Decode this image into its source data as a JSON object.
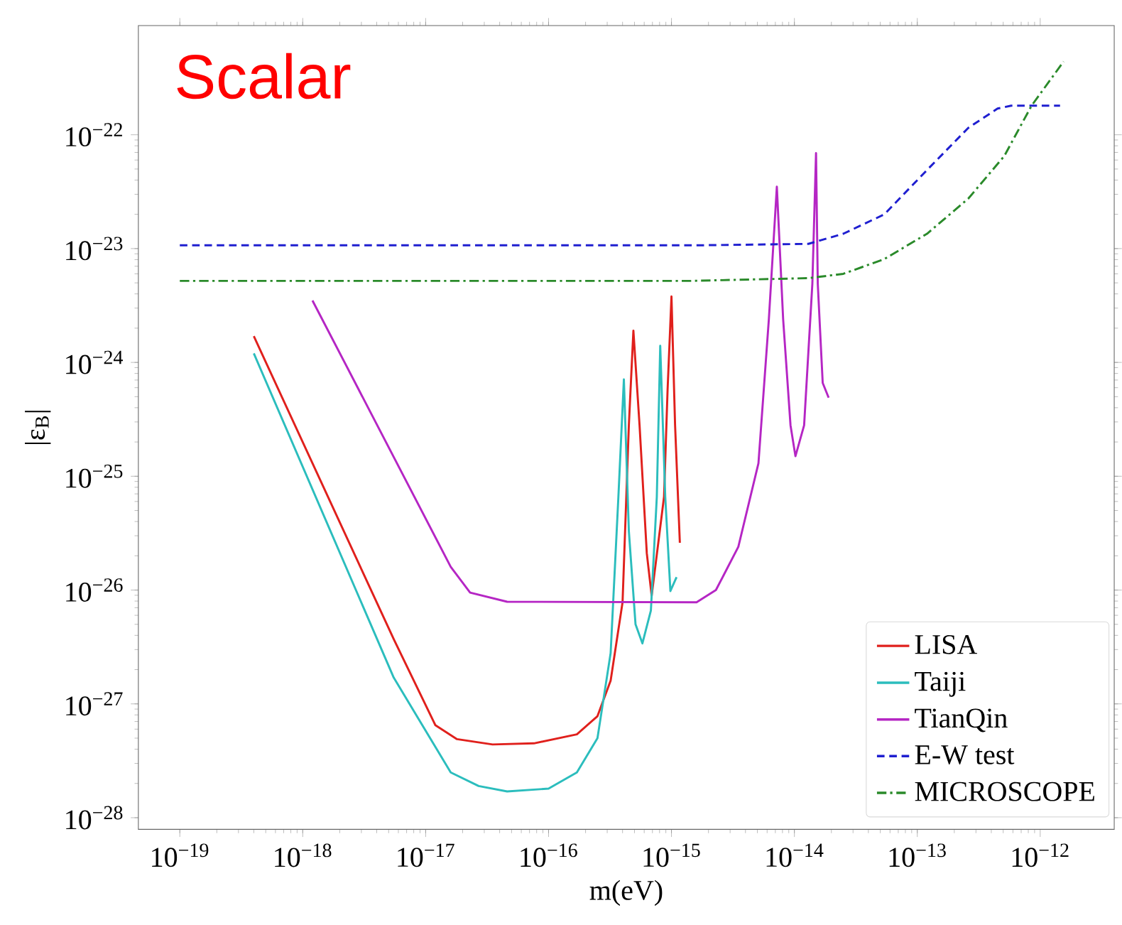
{
  "chart_data": {
    "type": "line",
    "title": "Scalar",
    "xlabel": "m(eV)",
    "ylabel": "|ε$_{B}$|",
    "log": "xy",
    "grid": false,
    "legend": "bottom right",
    "xlim": [
      4.6e-20,
      4e-12
    ],
    "ylim": [
      7.9e-29,
      9.1e-22
    ],
    "xticks": [
      {
        "value": 1e-19,
        "label": "10$^{−19}$"
      },
      {
        "value": 1e-18,
        "label": "10$^{−18}$"
      },
      {
        "value": 1e-17,
        "label": "10$^{−17}$"
      },
      {
        "value": 1e-16,
        "label": "10$^{−16}$"
      },
      {
        "value": 1e-15,
        "label": "10$^{−15}$"
      },
      {
        "value": 1e-14,
        "label": "10$^{−14}$"
      },
      {
        "value": 1e-13,
        "label": "10$^{−13}$"
      },
      {
        "value": 1e-12,
        "label": "10$^{−12}$"
      }
    ],
    "yticks": [
      {
        "value": 1e-28,
        "label": "10$^{−28}$"
      },
      {
        "value": 1e-27,
        "label": "10$^{−27}$"
      },
      {
        "value": 1e-26,
        "label": "10$^{−26}$"
      },
      {
        "value": 1e-25,
        "label": "10$^{−25}$"
      },
      {
        "value": 1e-24,
        "label": "10$^{−24}$"
      },
      {
        "value": 1e-23,
        "label": "10$^{−23}$"
      },
      {
        "value": 1e-22,
        "label": "10$^{−22}$"
      }
    ],
    "series": [
      {
        "name": "LISA",
        "color": "#e0201c",
        "line_style": "solid",
        "x": [
          4e-19,
          5.5e-18,
          1.2e-17,
          1.8e-17,
          3.5e-17,
          7.6e-17,
          1.7e-16,
          2.5e-16,
          3.2e-16,
          4e-16,
          4.5e-16,
          4.9e-16,
          5.5e-16,
          6.3e-16,
          6.9e-16,
          8.7e-16,
          9.3e-16,
          1e-15,
          1.07e-15,
          1.17e-15
        ],
        "values": [
          1.7e-24,
          3.7e-27,
          6.5e-28,
          4.9e-28,
          4.4e-28,
          4.5e-28,
          5.4e-28,
          7.8e-28,
          1.6e-27,
          7.8e-27,
          2.8e-25,
          1.9e-24,
          2.8e-25,
          2.1e-26,
          8.9e-27,
          6.6e-26,
          5.8e-25,
          3.8e-24,
          2.8e-25,
          2.6e-26
        ]
      },
      {
        "name": "Taiji",
        "color": "#2bbdbd",
        "line_style": "solid",
        "x": [
          4e-19,
          5.5e-18,
          1.6e-17,
          2.7e-17,
          4.6e-17,
          1e-16,
          1.7e-16,
          2.5e-16,
          3.2e-16,
          3.7e-16,
          4.1e-16,
          4.5e-16,
          5.1e-16,
          5.8e-16,
          6.8e-16,
          7.6e-16,
          8.1e-16,
          8.9e-16,
          9.8e-16,
          1.1e-15
        ],
        "values": [
          1.2e-24,
          1.7e-27,
          2.5e-28,
          1.9e-28,
          1.7e-28,
          1.8e-28,
          2.5e-28,
          5e-28,
          2.8e-27,
          6.6e-26,
          7.1e-25,
          3.3e-26,
          5e-27,
          3.4e-27,
          6.6e-27,
          6.6e-26,
          1.4e-24,
          6.6e-26,
          9.8e-27,
          1.3e-26
        ]
      },
      {
        "name": "TianQin",
        "color": "#b526c4",
        "line_style": "solid",
        "x": [
          1.2e-18,
          1.6e-17,
          2.3e-17,
          4.6e-17,
          1.6e-15,
          2.3e-15,
          3.5e-15,
          5.1e-15,
          6.2e-15,
          7.2e-15,
          8.1e-15,
          9.3e-15,
          1.02e-14,
          1.2e-14,
          1.4e-14,
          1.5e-14,
          1.55e-14,
          1.7e-14,
          1.9e-14
        ],
        "values": [
          3.5e-24,
          1.6e-26,
          9.5e-27,
          7.9e-27,
          7.8e-27,
          1e-26,
          2.4e-26,
          1.3e-25,
          2.4e-24,
          3.5e-23,
          2.4e-24,
          2.8e-25,
          1.5e-25,
          2.8e-25,
          4.9e-24,
          6.9e-23,
          4.9e-24,
          6.6e-25,
          4.9e-25
        ]
      },
      {
        "name": "E-W test",
        "color": "#1f1fd0",
        "line_style": "dashed",
        "x": [
          1e-19,
          1.8e-15,
          1.3e-14,
          2.5e-14,
          5.4e-14,
          1.2e-13,
          2.6e-13,
          4.5e-13,
          5.8e-13,
          1.45e-12
        ],
        "values": [
          1.07e-23,
          1.07e-23,
          1.1e-23,
          1.35e-23,
          2e-23,
          4.9e-23,
          1.15e-22,
          1.7e-22,
          1.8e-22,
          1.8e-22
        ]
      },
      {
        "name": "MICROSCOPE",
        "color": "#2a8a2a",
        "line_style": "dashdot",
        "x": [
          1e-19,
          1.4e-15,
          1.3e-14,
          2.5e-14,
          5.4e-14,
          1.2e-13,
          2.6e-13,
          5.1e-13,
          8.5e-13,
          1.55e-12
        ],
        "values": [
          5.2e-24,
          5.2e-24,
          5.5e-24,
          6e-24,
          8.1e-24,
          1.35e-23,
          2.75e-23,
          6.5e-23,
          1.8e-22,
          4.4e-22
        ]
      }
    ]
  }
}
